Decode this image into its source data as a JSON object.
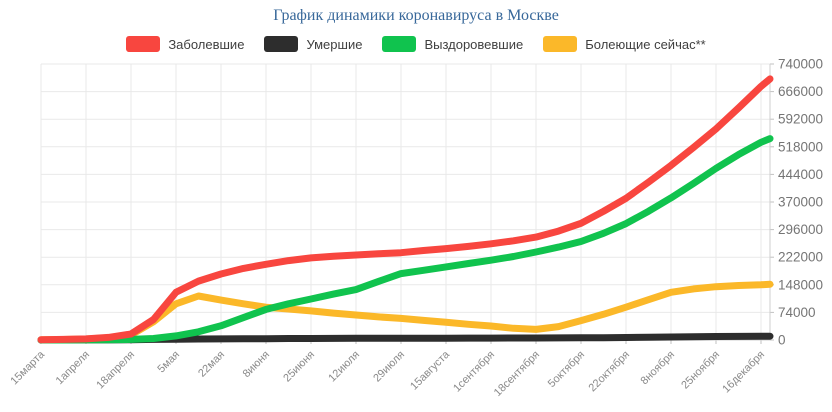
{
  "title": "График динамики коронавируса в Москве",
  "colors": {
    "title": "#38689a",
    "background": "#ffffff",
    "grid": "#e9e9e9",
    "axis_line": "#cfcfcf",
    "tick_mark": "#c2c2c2",
    "y_label": "#757575",
    "x_label": "#8a8a8a",
    "legend_text": "#3f3f3f",
    "infected": "#f8463f",
    "deaths": "#2d2d2d",
    "recovered": "#10c34e",
    "active": "#fbb829"
  },
  "chart_data": {
    "type": "line",
    "title": "График динамики коронавируса в Москве",
    "xlabel": "",
    "ylabel": "",
    "ylim": [
      0,
      740000
    ],
    "y_ticks": [
      0,
      74000,
      148000,
      222000,
      296000,
      370000,
      444000,
      518000,
      592000,
      666000,
      740000
    ],
    "y_tick_labels": [
      "0",
      "74000",
      "148000",
      "222000",
      "296000",
      "370000",
      "444000",
      "518000",
      "592000",
      "666000",
      "740000"
    ],
    "x_tick_labels": [
      "15марта",
      "1апреля",
      "18апреля",
      "5мая",
      "22мая",
      "8июня",
      "25июня",
      "12июля",
      "29июля",
      "15августа",
      "1сентября",
      "18сентября",
      "5октября",
      "22октября",
      "8ноября",
      "25ноября",
      "16декабря"
    ],
    "grid": true,
    "legend_position": "top",
    "x": [
      0,
      0.5,
      1,
      1.5,
      2,
      2.5,
      3,
      3.5,
      4,
      4.5,
      5,
      5.5,
      6,
      6.5,
      7,
      7.5,
      8,
      8.5,
      9,
      9.5,
      10,
      10.5,
      11,
      11.5,
      12,
      12.5,
      13,
      13.5,
      14,
      14.5,
      15,
      15.5,
      16,
      16.2
    ],
    "series": [
      {
        "name": "Заболевшие",
        "color": "#f8463f",
        "values": [
          500,
          1500,
          3000,
          7000,
          16000,
          55000,
          128000,
          158000,
          177000,
          192000,
          203000,
          213000,
          220000,
          224500,
          228000,
          231000,
          234000,
          240000,
          245000,
          251000,
          258000,
          266000,
          276000,
          292000,
          313000,
          345000,
          380000,
          423000,
          468000,
          516000,
          566000,
          622000,
          680000,
          700000
        ]
      },
      {
        "name": "Умершие",
        "color": "#2d2d2d",
        "values": [
          0,
          50,
          150,
          400,
          900,
          1500,
          2100,
          2600,
          3000,
          3300,
          3600,
          3900,
          4100,
          4300,
          4450,
          4600,
          4700,
          4800,
          4900,
          5000,
          5100,
          5250,
          5400,
          5600,
          5900,
          6300,
          6800,
          7400,
          8000,
          8700,
          9300,
          9700,
          10000,
          10100
        ]
      },
      {
        "name": "Выздоровевшие",
        "color": "#10c34e",
        "values": [
          0,
          50,
          150,
          600,
          1500,
          4000,
          11000,
          22000,
          38000,
          60000,
          82000,
          97000,
          110000,
          123000,
          135000,
          157000,
          178000,
          187000,
          196000,
          205000,
          214000,
          224000,
          236000,
          249000,
          264000,
          286000,
          312000,
          345000,
          381000,
          420000,
          460000,
          497000,
          530000,
          540000
        ]
      },
      {
        "name": "Болеющие сейчас**",
        "color": "#fbb829",
        "values": [
          500,
          1400,
          2800,
          6000,
          13500,
          49000,
          97000,
          118000,
          107000,
          97000,
          88000,
          83000,
          78000,
          72000,
          67000,
          62000,
          58000,
          52500,
          47500,
          42000,
          37500,
          31500,
          28500,
          36000,
          52000,
          69000,
          88000,
          108000,
          128000,
          137000,
          143000,
          146000,
          148000,
          149500
        ]
      }
    ],
    "draw_order": [
      3,
      1,
      2,
      0
    ],
    "line_width": 7
  }
}
